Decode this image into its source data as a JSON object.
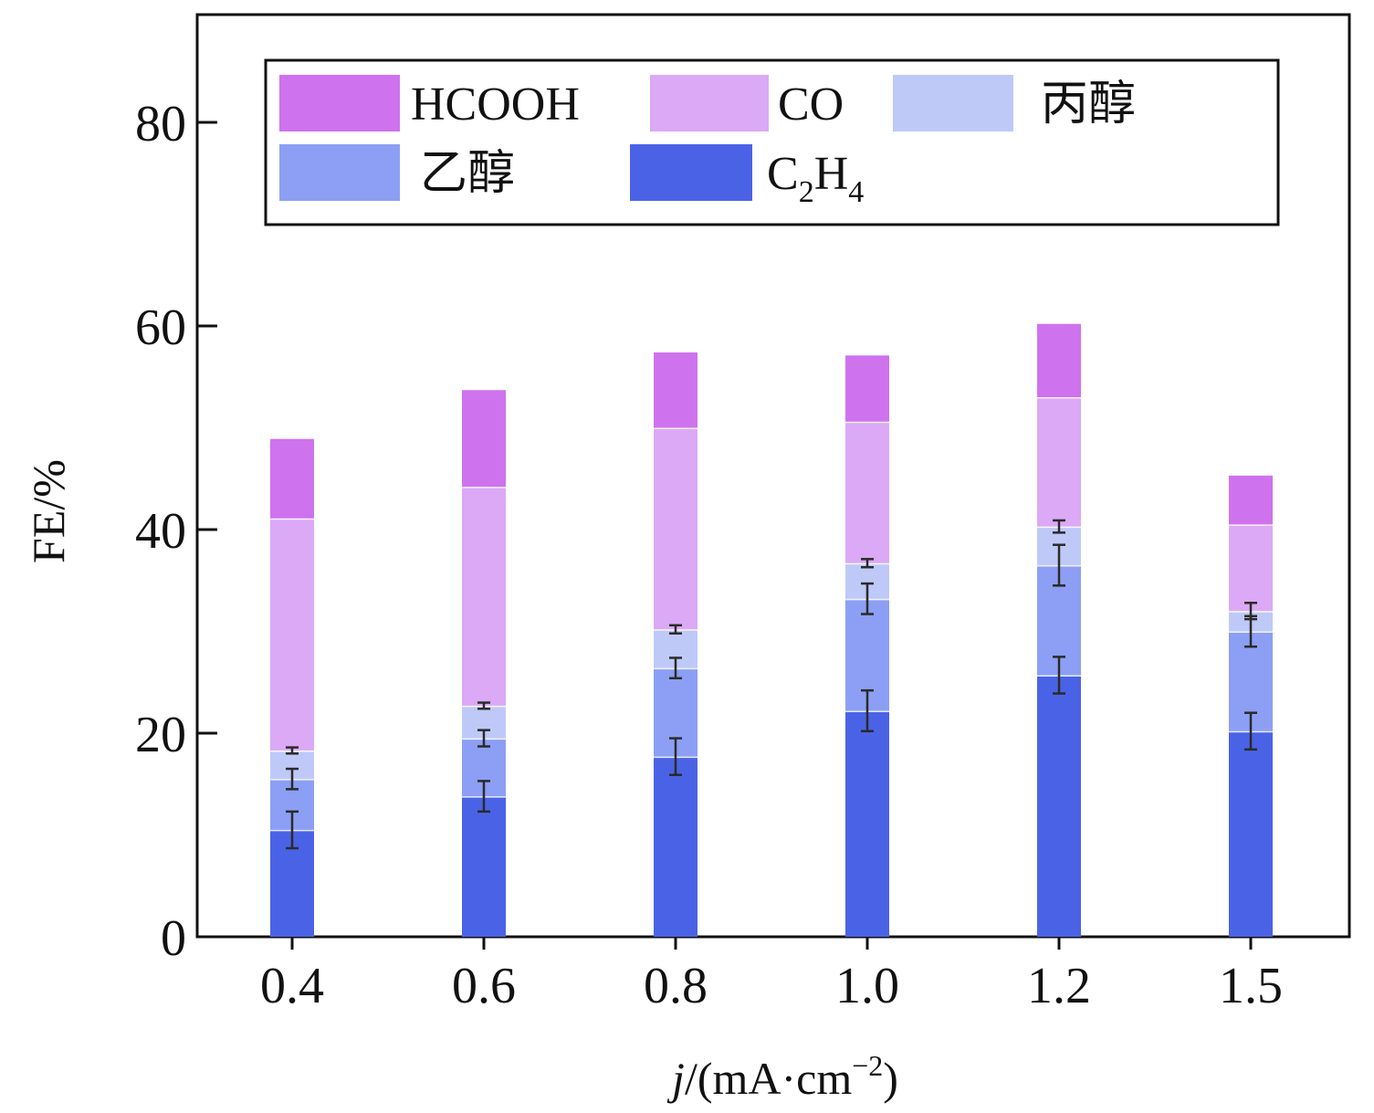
{
  "chart_data": {
    "type": "bar",
    "stacked": true,
    "title": "",
    "xlabel": "j/(mA·cm−2)",
    "xlabel_parts": {
      "var": "j",
      "rest": "/(mA·cm",
      "sup": "−2",
      "close": ")"
    },
    "ylabel": "FE/%",
    "ylim": [
      0,
      90
    ],
    "yticks": [
      0,
      20,
      40,
      60,
      80
    ],
    "ytick_labels": [
      "0",
      "20",
      "40",
      "60",
      "80"
    ],
    "categories": [
      "0.4",
      "0.6",
      "0.8",
      "1.0",
      "1.2",
      "1.5"
    ],
    "grid": false,
    "legend": {
      "placement": "top",
      "entries": [
        {
          "label": "HCOOH",
          "series": "HCOOH"
        },
        {
          "label": "CO",
          "series": "CO"
        },
        {
          "label": "丙醇",
          "series": "丙醇"
        },
        {
          "label": "乙醇",
          "series": "乙醇"
        },
        {
          "label": "C2H4",
          "series": "C2H4",
          "base": "C",
          "sub1": "2",
          "mid": "H",
          "sub2": "4"
        }
      ]
    },
    "series": [
      {
        "name": "C2H4",
        "color": "#4a63e6",
        "values": [
          10.5,
          13.8,
          17.7,
          22.2,
          25.7,
          20.2
        ],
        "errors": [
          1.8,
          1.5,
          1.8,
          2.0,
          1.8,
          1.8
        ]
      },
      {
        "name": "乙醇",
        "color": "#8c9ff4",
        "values": [
          5.0,
          5.7,
          8.7,
          11.0,
          10.8,
          9.8
        ],
        "errors": [
          1.0,
          0.8,
          1.0,
          1.5,
          2.0,
          1.5
        ]
      },
      {
        "name": "丙醇",
        "color": "#bfc9f8",
        "values": [
          2.8,
          3.2,
          3.8,
          3.5,
          3.8,
          2.0
        ],
        "errors": [
          0.3,
          0.3,
          0.4,
          0.4,
          0.6,
          0.8
        ]
      },
      {
        "name": "CO",
        "color": "#dba9f6",
        "values": [
          22.8,
          21.5,
          19.8,
          13.9,
          12.7,
          8.5
        ],
        "errors": null
      },
      {
        "name": "HCOOH",
        "color": "#cf72ee",
        "values": [
          7.8,
          9.5,
          7.4,
          6.5,
          7.2,
          4.8
        ],
        "errors": null
      }
    ]
  }
}
